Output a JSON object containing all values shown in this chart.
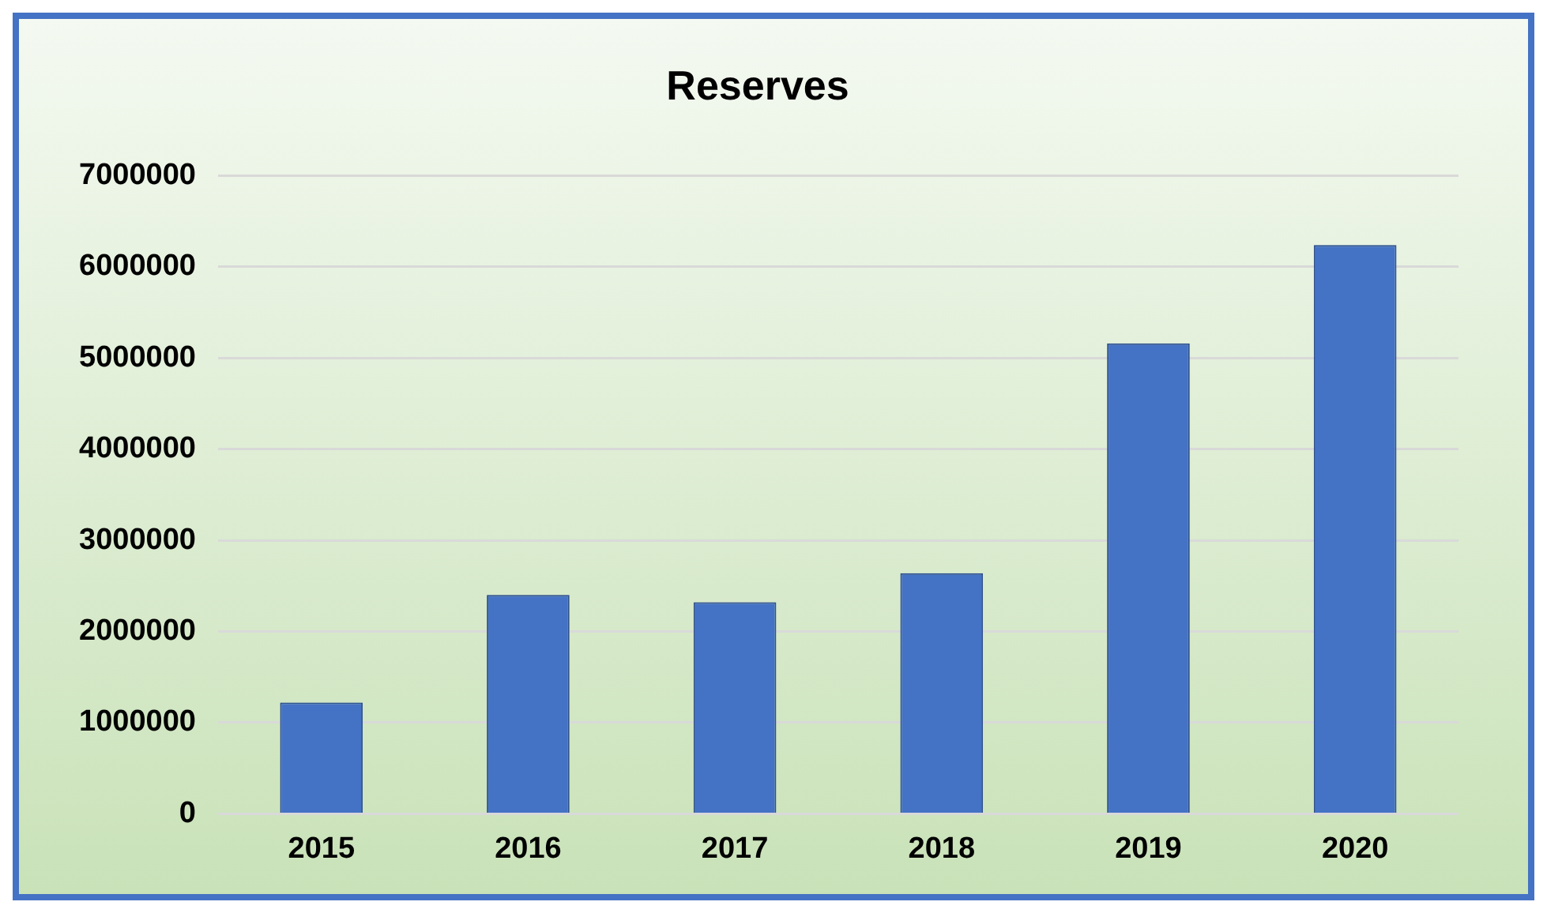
{
  "chart_data": {
    "type": "bar",
    "title": "Reserves",
    "categories": [
      "2015",
      "2016",
      "2017",
      "2018",
      "2019",
      "2020"
    ],
    "values": [
      1220000,
      2400000,
      2320000,
      2640000,
      5160000,
      6240000
    ],
    "color": "#4472c4",
    "ylim": [
      0,
      7000000
    ],
    "yticks": [
      0,
      1000000,
      2000000,
      3000000,
      4000000,
      5000000,
      6000000,
      7000000
    ],
    "grid": "y"
  }
}
